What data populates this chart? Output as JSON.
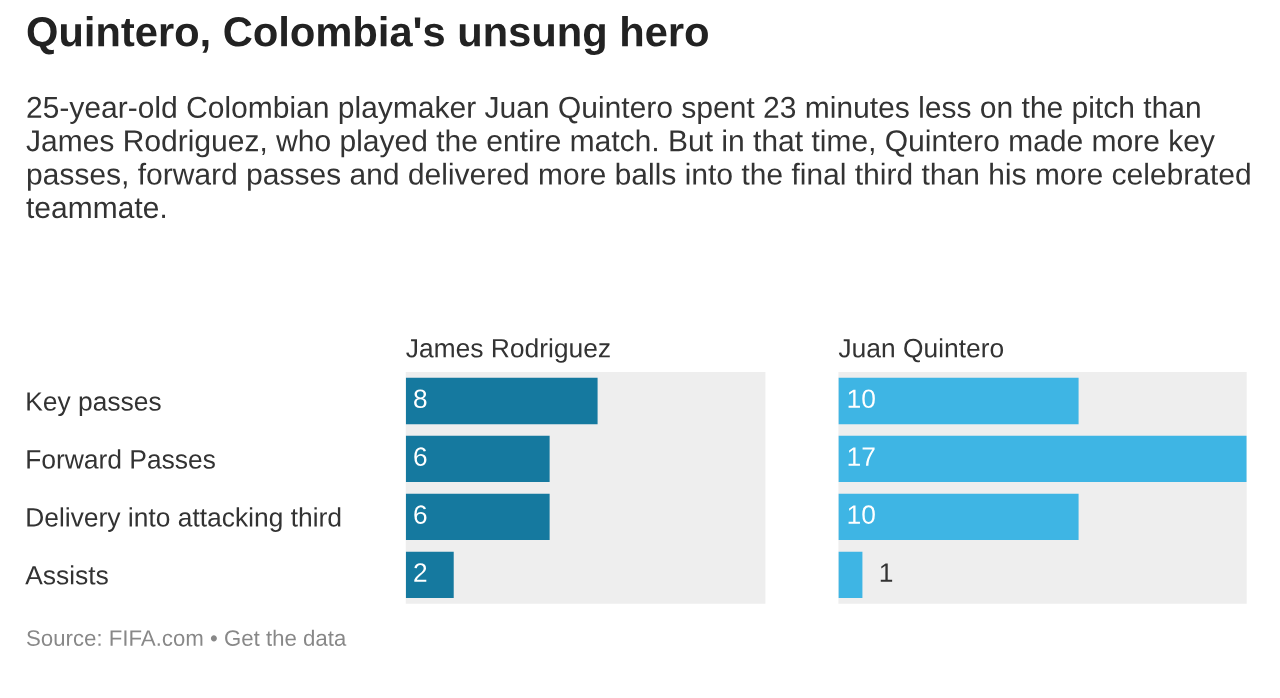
{
  "chart_data": [
    {
      "type": "bar",
      "orientation": "horizontal",
      "title": "Quintero, Colombia's unsung hero",
      "subtitle": "25-year-old Colombian playmaker Juan Quintero spent 23 minutes less on the pitch than James Rodriguez, who played the entire match. But in that time, Quintero made more key passes, forward passes and delivered more balls into the final third than his more celebrated teammate.",
      "annotations": [
        "Source: FIFA.com • Get the data"
      ],
      "categories": [
        "Key passes",
        "Forward Passes",
        "Delivery into attacking third",
        "Assists"
      ],
      "series": [
        {
          "name": "James Rodriguez",
          "color": "#15799f",
          "values": [
            8,
            6,
            6,
            2
          ]
        }
      ],
      "xlim": [
        0,
        15
      ],
      "data_labels": true,
      "tick_labels": "y",
      "grid": false,
      "legend": false
    },
    {
      "type": "bar",
      "orientation": "horizontal",
      "categories": [
        null,
        null,
        null,
        null
      ],
      "series": [
        {
          "name": "Juan Quintero",
          "color": "#3eb5e4",
          "values": [
            10,
            17,
            10,
            1
          ]
        }
      ],
      "xlim": [
        0,
        17
      ],
      "data_labels": true,
      "tick_labels": false,
      "grid": false,
      "legend": false
    }
  ]
}
